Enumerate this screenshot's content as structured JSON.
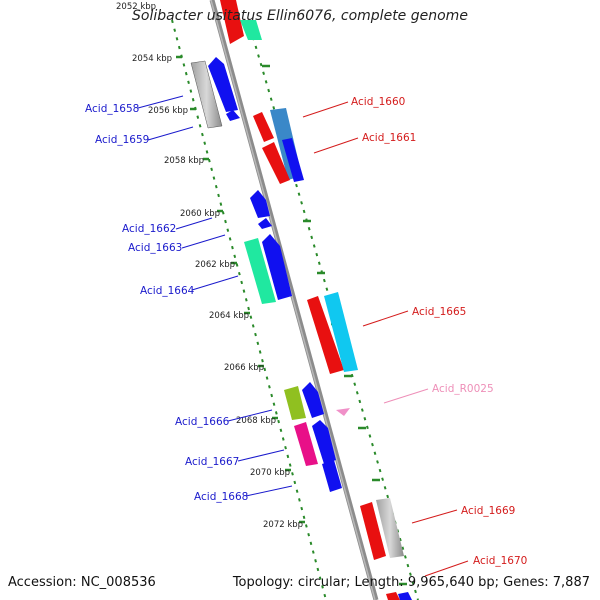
{
  "title": "Solibacter usitatus Ellin6076, complete genome",
  "accession_label": "Accession:",
  "accession": "NC_008536",
  "topology_label": "Topology:",
  "topology": "circular",
  "length_label": "Length:",
  "length": "9,965,640 bp",
  "genes_label": "Genes:",
  "genes": "7,887",
  "colors": {
    "backbone": "#8c8c8c",
    "tick": "#2a8a2a",
    "left_label": "#1a1acc",
    "right_label": "#d41c1c",
    "rna_label": "#ee8fb8"
  },
  "ticks": [
    "2052 kbp",
    "2054 kbp",
    "2056 kbp",
    "2058 kbp",
    "2060 kbp",
    "2062 kbp",
    "2064 kbp",
    "2066 kbp",
    "2068 kbp",
    "2070 kbp",
    "2072 kbp"
  ],
  "left_labels": [
    "Acid_1658",
    "Acid_1659",
    "Acid_1662",
    "Acid_1663",
    "Acid_1664",
    "Acid_1666",
    "Acid_1667",
    "Acid_1668"
  ],
  "right_labels": [
    "Acid_1660",
    "Acid_1661",
    "Acid_1665",
    "Acid_R0025",
    "Acid_1669",
    "Acid_1670"
  ]
}
